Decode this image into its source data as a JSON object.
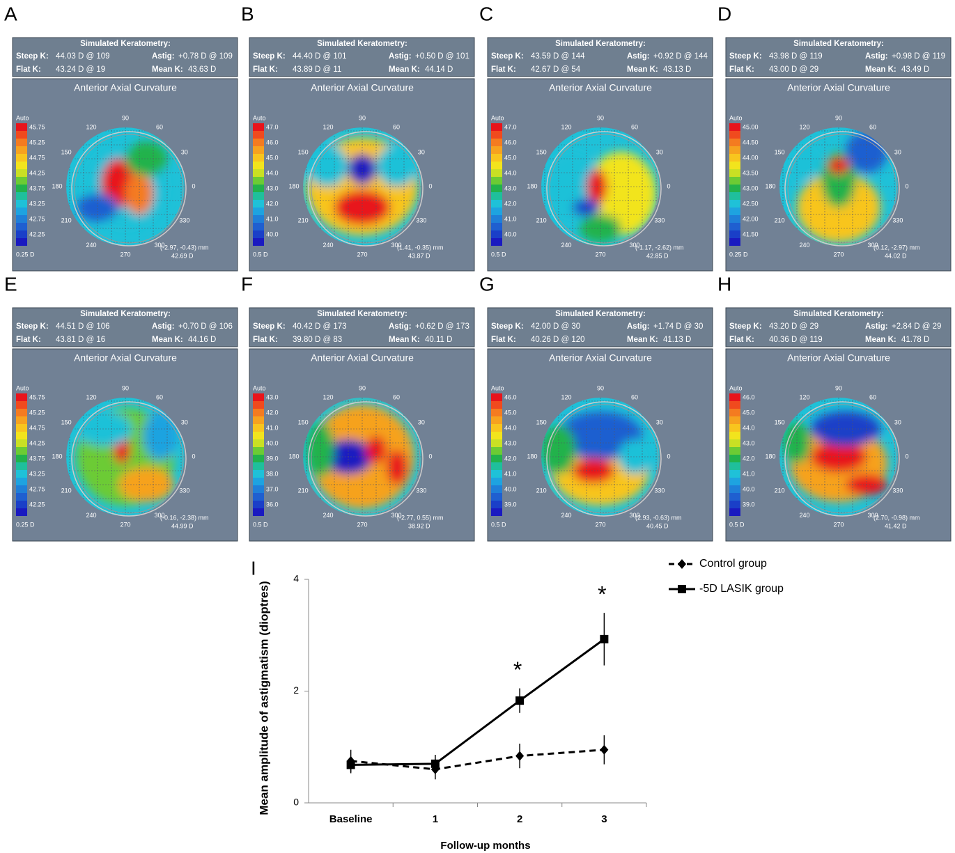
{
  "labels": {
    "keratometry_title": "Simulated Keratometry:",
    "steep": "Steep K:",
    "astig": "Astig:",
    "flat": "Flat K:",
    "mean": "Mean K:",
    "map_title": "Anterior Axial Curvature",
    "scale_header": "Auto"
  },
  "angle_labels": [
    "0",
    "30",
    "60",
    "90",
    "120",
    "150",
    "180",
    "210",
    "240",
    "270",
    "300",
    "330"
  ],
  "panels": [
    {
      "letter": "A",
      "steep": "44.03 D @ 109",
      "astig": "+0.78 D @ 109",
      "flat": "43.24 D @ 19",
      "mean": "43.63 D",
      "scale": [
        "45.75",
        "45.25",
        "44.75",
        "44.25",
        "43.75",
        "43.25",
        "42.75",
        "42.25"
      ],
      "scale_step": "0.25 D",
      "coords": "(-2.97, -0.43) mm",
      "coord_value": "42.69 D"
    },
    {
      "letter": "B",
      "steep": "44.40 D @ 101",
      "astig": "+0.50 D @ 101",
      "flat": "43.89 D @ 11",
      "mean": "44.14 D",
      "scale": [
        "47.0",
        "46.0",
        "45.0",
        "44.0",
        "43.0",
        "42.0",
        "41.0",
        "40.0"
      ],
      "scale_step": "0.5 D",
      "coords": "(1.41, -0.35) mm",
      "coord_value": "43.87 D"
    },
    {
      "letter": "C",
      "steep": "43.59 D @ 144",
      "astig": "+0.92 D @ 144",
      "flat": "42.67 D @ 54",
      "mean": "43.13 D",
      "scale": [
        "47.0",
        "46.0",
        "45.0",
        "44.0",
        "43.0",
        "42.0",
        "41.0",
        "40.0"
      ],
      "scale_step": "0.5 D",
      "coords": "(-1.17, -2.62) mm",
      "coord_value": "42.85 D"
    },
    {
      "letter": "D",
      "steep": "43.98 D @ 119",
      "astig": "+0.98 D @ 119",
      "flat": "43.00 D @ 29",
      "mean": "43.49 D",
      "scale": [
        "45.00",
        "44.50",
        "44.00",
        "43.50",
        "43.00",
        "42.50",
        "42.00",
        "41.50"
      ],
      "scale_step": "0.25 D",
      "coords": "(0.12, -2.97) mm",
      "coord_value": "44.02 D"
    },
    {
      "letter": "E",
      "steep": "44.51 D @ 106",
      "astig": "+0.70 D @ 106",
      "flat": "43.81 D @ 16",
      "mean": "44.16 D",
      "scale": [
        "45.75",
        "45.25",
        "44.75",
        "44.25",
        "43.75",
        "43.25",
        "42.75",
        "42.25"
      ],
      "scale_step": "0.25 D",
      "coords": "(-0.16, -2.38) mm",
      "coord_value": "44.99 D"
    },
    {
      "letter": "F",
      "steep": "40.42 D @ 173",
      "astig": "+0.62 D @ 173",
      "flat": "39.80 D @ 83",
      "mean": "40.11 D",
      "scale": [
        "43.0",
        "42.0",
        "41.0",
        "40.0",
        "39.0",
        "38.0",
        "37.0",
        "36.0"
      ],
      "scale_step": "0.5 D",
      "coords": "(-2.77, 0.55) mm",
      "coord_value": "38.92 D"
    },
    {
      "letter": "G",
      "steep": "42.00 D @ 30",
      "astig": "+1.74 D @ 30",
      "flat": "40.26 D @ 120",
      "mean": "41.13 D",
      "scale": [
        "46.0",
        "45.0",
        "44.0",
        "43.0",
        "42.0",
        "41.0",
        "40.0",
        "39.0"
      ],
      "scale_step": "0.5 D",
      "coords": "(2.93, -0.63) mm",
      "coord_value": "40.45 D"
    },
    {
      "letter": "H",
      "steep": "43.20 D @ 29",
      "astig": "+2.84 D @ 29",
      "flat": "40.36 D @ 119",
      "mean": "41.78 D",
      "scale": [
        "46.0",
        "45.0",
        "44.0",
        "43.0",
        "42.0",
        "41.0",
        "40.0",
        "39.0"
      ],
      "scale_step": "0.5 D",
      "coords": "(2.70, -0.98) mm",
      "coord_value": "41.42 D"
    }
  ],
  "chart_data": {
    "type": "line",
    "panel_letter": "I",
    "y_label": "Mean amplitude of astigmatism (dioptres)",
    "x_label": "Follow-up months",
    "categories": [
      "Baseline",
      "1",
      "2",
      "3"
    ],
    "ylim": [
      0,
      4
    ],
    "yticks": [
      0,
      2,
      4
    ],
    "series": [
      {
        "name": "Control group",
        "color": "#000000",
        "dashed": true,
        "marker": "diamond",
        "values": [
          0.75,
          0.6,
          0.84,
          0.95
        ],
        "errors": [
          0.2,
          0.18,
          0.22,
          0.26
        ]
      },
      {
        "name": "-5D LASIK group",
        "color": "#000000",
        "dashed": false,
        "marker": "square",
        "values": [
          0.68,
          0.7,
          1.83,
          2.93
        ],
        "errors": [
          0.15,
          0.16,
          0.22,
          0.47
        ]
      }
    ],
    "annotations": [
      {
        "text": "*",
        "x": "2"
      },
      {
        "text": "*",
        "x": "3"
      }
    ]
  }
}
